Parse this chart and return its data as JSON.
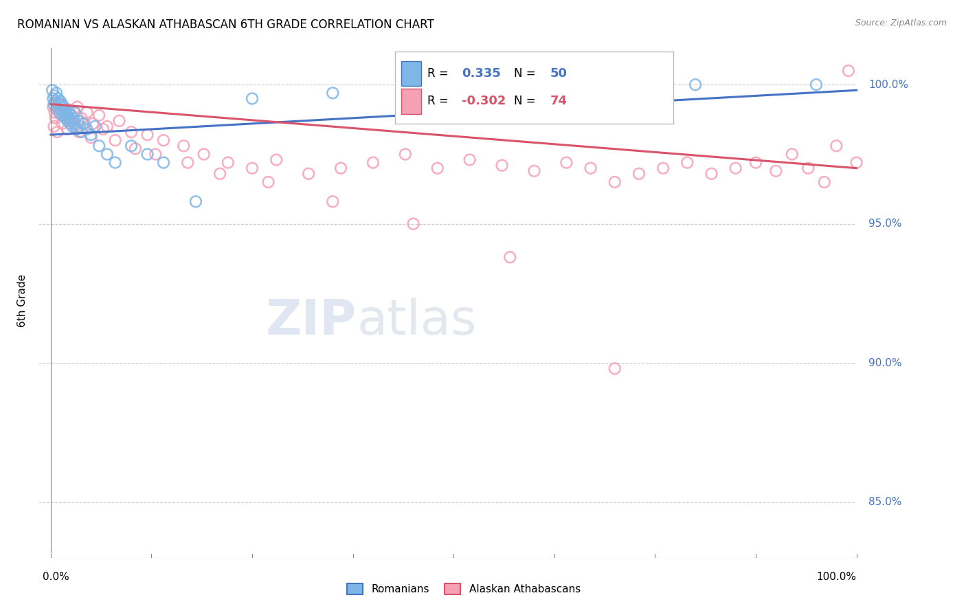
{
  "title": "ROMANIAN VS ALASKAN ATHABASCAN 6TH GRADE CORRELATION CHART",
  "source": "Source: ZipAtlas.com",
  "ylabel": "6th Grade",
  "y_tick_labels": [
    "85.0%",
    "90.0%",
    "95.0%",
    "100.0%"
  ],
  "y_tick_values": [
    85.0,
    90.0,
    95.0,
    100.0
  ],
  "xlim": [
    0.0,
    100.0
  ],
  "ylim": [
    83.0,
    101.5
  ],
  "legend_romanian": "Romanians",
  "legend_alaskan": "Alaskan Athabascans",
  "R_romanian": "0.335",
  "N_romanian": "50",
  "R_alaskan": "-0.302",
  "N_alaskan": "74",
  "blue_color": "#7EB6E8",
  "pink_color": "#F5A0B5",
  "blue_line_color": "#4472C4",
  "pink_line_color": "#D9546A",
  "blue_trendline": [
    0.0,
    98.2,
    100.0,
    99.8
  ],
  "pink_trendline": [
    0.0,
    99.3,
    100.0,
    97.0
  ],
  "rom_x": [
    0.2,
    0.3,
    0.4,
    0.5,
    0.6,
    0.7,
    0.8,
    0.9,
    1.0,
    1.1,
    1.2,
    1.3,
    1.4,
    1.5,
    1.6,
    1.7,
    1.8,
    1.9,
    2.0,
    2.1,
    2.2,
    2.3,
    2.4,
    2.5,
    2.6,
    2.7,
    2.8,
    2.9,
    3.0,
    3.2,
    3.4,
    3.6,
    3.8,
    4.0,
    4.5,
    5.0,
    5.5,
    6.0,
    7.0,
    8.0,
    10.0,
    12.0,
    14.0,
    18.0,
    25.0,
    35.0,
    50.0,
    65.0,
    80.0,
    95.0
  ],
  "rom_y": [
    99.8,
    99.5,
    99.3,
    99.6,
    99.4,
    99.7,
    99.2,
    99.5,
    99.3,
    99.0,
    99.4,
    99.1,
    99.3,
    98.9,
    99.2,
    99.0,
    98.8,
    99.1,
    98.9,
    98.7,
    99.0,
    98.8,
    98.6,
    98.9,
    98.7,
    98.5,
    98.8,
    98.6,
    99.0,
    98.4,
    98.7,
    98.5,
    98.3,
    98.6,
    98.4,
    98.2,
    98.5,
    97.8,
    97.5,
    97.2,
    97.8,
    97.5,
    97.2,
    95.8,
    99.5,
    99.7,
    99.8,
    99.9,
    100.0,
    100.0
  ],
  "alk_x": [
    0.3,
    0.5,
    0.7,
    0.9,
    1.1,
    1.3,
    1.5,
    1.8,
    2.0,
    2.3,
    2.6,
    2.9,
    3.3,
    3.8,
    4.5,
    5.2,
    6.0,
    7.0,
    8.5,
    10.0,
    12.0,
    14.0,
    16.5,
    19.0,
    22.0,
    25.0,
    28.0,
    32.0,
    36.0,
    40.0,
    44.0,
    48.0,
    52.0,
    56.0,
    60.0,
    64.0,
    67.0,
    70.0,
    73.0,
    76.0,
    79.0,
    82.0,
    85.0,
    87.5,
    90.0,
    92.0,
    94.0,
    96.0,
    97.5,
    99.0,
    0.4,
    0.6,
    0.8,
    1.0,
    1.4,
    1.7,
    2.1,
    2.5,
    3.0,
    3.5,
    4.2,
    5.0,
    6.5,
    8.0,
    10.5,
    13.0,
    17.0,
    21.0,
    27.0,
    35.0,
    45.0,
    57.0,
    70.0,
    100.0
  ],
  "alk_y": [
    99.2,
    99.0,
    99.3,
    99.1,
    99.4,
    98.9,
    99.2,
    99.0,
    98.8,
    99.1,
    98.7,
    99.0,
    99.2,
    98.8,
    99.0,
    98.6,
    98.9,
    98.5,
    98.7,
    98.3,
    98.2,
    98.0,
    97.8,
    97.5,
    97.2,
    97.0,
    97.3,
    96.8,
    97.0,
    97.2,
    97.5,
    97.0,
    97.3,
    97.1,
    96.9,
    97.2,
    97.0,
    96.5,
    96.8,
    97.0,
    97.2,
    96.8,
    97.0,
    97.2,
    96.9,
    97.5,
    97.0,
    96.5,
    97.8,
    100.5,
    98.5,
    98.8,
    98.3,
    99.0,
    98.6,
    98.9,
    98.4,
    98.7,
    98.5,
    98.3,
    98.6,
    98.1,
    98.4,
    98.0,
    97.7,
    97.5,
    97.2,
    96.8,
    96.5,
    95.8,
    95.0,
    93.8,
    89.8,
    97.2
  ]
}
